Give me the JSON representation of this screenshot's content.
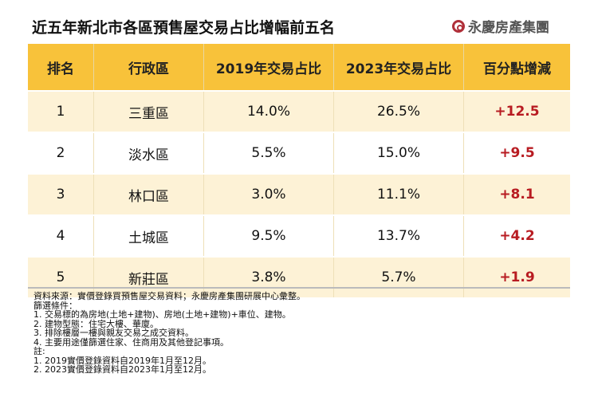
{
  "title": "近五年新北市各區預售屋交易占比增幅前五名",
  "logo": "永慶房產集團",
  "colors": {
    "header": "#f8c23a",
    "row_alt": "#fdf2d6",
    "increase": "#b81c22"
  },
  "table": {
    "headers": [
      "排名",
      "行政區",
      "2019年交易占比",
      "2023年交易占比",
      "百分點增減"
    ],
    "rows": [
      [
        "1",
        "三重區",
        "14.0%",
        "26.5%",
        "+12.5"
      ],
      [
        "2",
        "淡水區",
        "5.5%",
        "15.0%",
        "+9.5"
      ],
      [
        "3",
        "林口區",
        "3.0%",
        "11.1%",
        "+8.1"
      ],
      [
        "4",
        "土城區",
        "9.5%",
        "13.7%",
        "+4.2"
      ],
      [
        "5",
        "新莊區",
        "3.8%",
        "5.7%",
        "+1.9"
      ]
    ]
  },
  "notes": [
    "資料來源：實價登錄買預售屋交易資料；永慶房產集團研展中心彙整。",
    "篩選條件：",
    "1. 交易標的為房地(土地+建物)、房地(土地+建物)+車位、建物。",
    "2. 建物型態：住宅大樓、華廈。",
    "3. 排除樓層一樓與親友交易之成交資料。",
    "4. 主要用途僅篩選住家、住商用及其他登記事項。",
    "註:",
    "1. 2019實價登錄資料自2019年1月至12月。",
    "2. 2023實價登錄資料自2023年1月至12月。"
  ]
}
